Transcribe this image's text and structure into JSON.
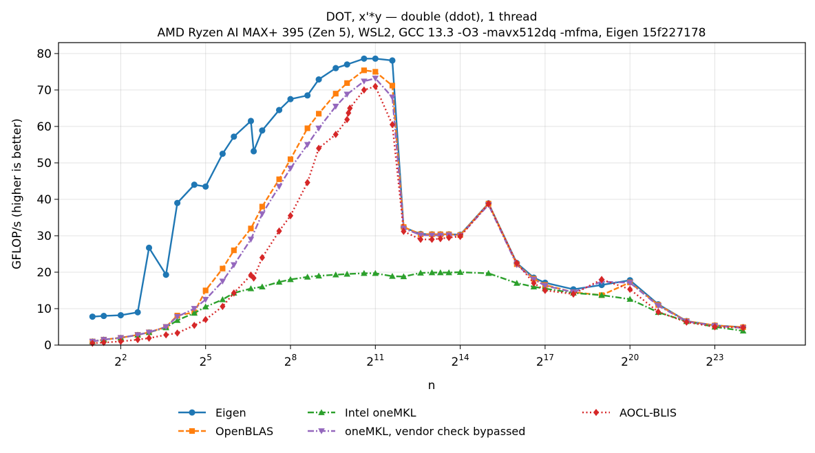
{
  "chart_data": {
    "type": "line",
    "title": "DOT, x'*y — double (ddot), 1 thread",
    "subtitle": "AMD Ryzen AI MAX+ 395 (Zen 5), WSL2, GCC 13.3 -O3 -mavx512dq -mfma, Eigen 15f227178",
    "xlabel": "n",
    "ylabel": "GFLOP/s (higher is better)",
    "x_scale": "log2",
    "x_ticks": [
      {
        "exp": 2,
        "label": "2",
        "sup": "2"
      },
      {
        "exp": 5,
        "label": "2",
        "sup": "5"
      },
      {
        "exp": 8,
        "label": "2",
        "sup": "8"
      },
      {
        "exp": 11,
        "label": "2",
        "sup": "11"
      },
      {
        "exp": 14,
        "label": "2",
        "sup": "14"
      },
      {
        "exp": 17,
        "label": "2",
        "sup": "17"
      },
      {
        "exp": 20,
        "label": "2",
        "sup": "20"
      },
      {
        "exp": 23,
        "label": "2",
        "sup": "23"
      }
    ],
    "xlim_log2": [
      -0.2,
      26.2
    ],
    "ylim": [
      0,
      83
    ],
    "y_ticks": [
      0,
      10,
      20,
      30,
      40,
      50,
      60,
      70,
      80
    ],
    "grid": true,
    "legend_position": "bottom-center",
    "series": [
      {
        "name": "Eigen",
        "color": "#1f77b4",
        "dash": "solid",
        "marker": "circle",
        "points": [
          [
            1.0,
            7.8
          ],
          [
            1.4,
            8.0
          ],
          [
            2.0,
            8.2
          ],
          [
            2.6,
            9.0
          ],
          [
            3.0,
            26.7
          ],
          [
            3.6,
            19.3
          ],
          [
            4.0,
            39.0
          ],
          [
            4.6,
            44.0
          ],
          [
            5.0,
            43.5
          ],
          [
            5.6,
            52.5
          ],
          [
            6.0,
            57.2
          ],
          [
            6.6,
            61.5
          ],
          [
            6.7,
            53.2
          ],
          [
            7.0,
            58.9
          ],
          [
            7.6,
            64.5
          ],
          [
            8.0,
            67.5
          ],
          [
            8.6,
            68.5
          ],
          [
            9.0,
            72.9
          ],
          [
            9.6,
            76.0
          ],
          [
            10.0,
            77.0
          ],
          [
            10.6,
            78.6
          ],
          [
            11.0,
            78.6
          ],
          [
            11.6,
            78.1
          ],
          [
            12.0,
            32.3
          ],
          [
            12.6,
            30.5
          ],
          [
            13.0,
            30.4
          ],
          [
            13.3,
            30.4
          ],
          [
            13.6,
            30.4
          ],
          [
            14.0,
            30.3
          ],
          [
            15.0,
            38.9
          ],
          [
            16.0,
            22.5
          ],
          [
            16.6,
            18.5
          ],
          [
            17.0,
            17.1
          ],
          [
            18.0,
            15.3
          ],
          [
            19.0,
            16.5
          ],
          [
            20.0,
            17.8
          ],
          [
            21.0,
            11.2
          ],
          [
            22.0,
            6.6
          ],
          [
            23.0,
            5.4
          ],
          [
            24.0,
            4.9
          ]
        ]
      },
      {
        "name": "OpenBLAS",
        "color": "#ff7f0e",
        "dash": "dashed",
        "marker": "square",
        "points": [
          [
            1.0,
            1.0
          ],
          [
            1.4,
            1.5
          ],
          [
            2.0,
            2.0
          ],
          [
            2.6,
            2.8
          ],
          [
            3.0,
            3.5
          ],
          [
            3.6,
            5.0
          ],
          [
            4.0,
            8.1
          ],
          [
            4.6,
            9.0
          ],
          [
            5.0,
            15.0
          ],
          [
            5.6,
            21.0
          ],
          [
            6.0,
            26.0
          ],
          [
            6.6,
            32.0
          ],
          [
            7.0,
            38.0
          ],
          [
            7.6,
            45.5
          ],
          [
            8.0,
            51.0
          ],
          [
            8.6,
            59.5
          ],
          [
            9.0,
            63.5
          ],
          [
            9.6,
            69.0
          ],
          [
            10.0,
            71.9
          ],
          [
            10.6,
            75.4
          ],
          [
            11.0,
            75.0
          ],
          [
            11.6,
            71.2
          ],
          [
            12.0,
            32.4
          ],
          [
            12.6,
            30.4
          ],
          [
            13.0,
            30.4
          ],
          [
            13.3,
            30.4
          ],
          [
            13.6,
            30.4
          ],
          [
            14.0,
            30.2
          ],
          [
            15.0,
            38.8
          ],
          [
            16.0,
            22.2
          ],
          [
            16.6,
            18.2
          ],
          [
            17.0,
            16.5
          ],
          [
            18.0,
            14.5
          ],
          [
            19.0,
            13.7
          ],
          [
            20.0,
            17.2
          ],
          [
            21.0,
            11.0
          ],
          [
            22.0,
            6.6
          ],
          [
            23.0,
            5.4
          ],
          [
            24.0,
            4.9
          ]
        ]
      },
      {
        "name": "Intel oneMKL",
        "color": "#2ca02c",
        "dash": "dashdot",
        "marker": "triangle-up",
        "points": [
          [
            1.0,
            1.0
          ],
          [
            1.4,
            1.5
          ],
          [
            2.0,
            2.0
          ],
          [
            2.6,
            2.8
          ],
          [
            3.0,
            3.5
          ],
          [
            3.6,
            4.8
          ],
          [
            4.0,
            6.8
          ],
          [
            4.6,
            8.8
          ],
          [
            5.0,
            10.5
          ],
          [
            5.6,
            12.5
          ],
          [
            6.0,
            14.3
          ],
          [
            6.6,
            15.5
          ],
          [
            7.0,
            16.0
          ],
          [
            7.6,
            17.3
          ],
          [
            8.0,
            18.0
          ],
          [
            8.6,
            18.7
          ],
          [
            9.0,
            19.0
          ],
          [
            9.6,
            19.3
          ],
          [
            10.0,
            19.5
          ],
          [
            10.6,
            19.7
          ],
          [
            11.0,
            19.7
          ],
          [
            11.6,
            18.9
          ],
          [
            12.0,
            18.8
          ],
          [
            12.6,
            19.8
          ],
          [
            13.0,
            19.9
          ],
          [
            13.3,
            19.9
          ],
          [
            13.6,
            19.9
          ],
          [
            14.0,
            20.0
          ],
          [
            15.0,
            19.7
          ],
          [
            16.0,
            17.0
          ],
          [
            16.6,
            16.0
          ],
          [
            17.0,
            15.5
          ],
          [
            18.0,
            14.3
          ],
          [
            19.0,
            13.7
          ],
          [
            20.0,
            12.6
          ],
          [
            21.0,
            9.0
          ],
          [
            22.0,
            6.5
          ],
          [
            23.0,
            5.0
          ],
          [
            24.0,
            3.9
          ]
        ]
      },
      {
        "name": "oneMKL, vendor check bypassed",
        "color": "#9467bd",
        "dash": "dashdot",
        "marker": "triangle-down",
        "points": [
          [
            1.0,
            1.0
          ],
          [
            1.4,
            1.5
          ],
          [
            2.0,
            2.0
          ],
          [
            2.6,
            2.8
          ],
          [
            3.0,
            3.5
          ],
          [
            3.6,
            5.0
          ],
          [
            4.0,
            7.8
          ],
          [
            4.6,
            10.0
          ],
          [
            5.0,
            12.5
          ],
          [
            5.6,
            17.5
          ],
          [
            6.0,
            22.0
          ],
          [
            6.6,
            29.0
          ],
          [
            7.0,
            36.0
          ],
          [
            7.6,
            43.5
          ],
          [
            8.0,
            48.5
          ],
          [
            8.6,
            55.0
          ],
          [
            9.0,
            59.5
          ],
          [
            9.6,
            65.5
          ],
          [
            10.0,
            68.8
          ],
          [
            10.6,
            72.4
          ],
          [
            11.0,
            73.2
          ],
          [
            11.6,
            68.0
          ],
          [
            12.0,
            32.0
          ],
          [
            12.6,
            30.2
          ],
          [
            13.0,
            30.1
          ],
          [
            13.3,
            30.1
          ],
          [
            13.6,
            30.2
          ],
          [
            14.0,
            30.0
          ],
          [
            15.0,
            38.5
          ],
          [
            16.0,
            22.0
          ],
          [
            16.6,
            18.0
          ],
          [
            17.0,
            16.3
          ],
          [
            18.0,
            14.5
          ],
          [
            19.0,
            17.4
          ],
          [
            20.0,
            17.1
          ],
          [
            21.0,
            10.8
          ],
          [
            22.0,
            6.5
          ],
          [
            23.0,
            5.3
          ],
          [
            24.0,
            4.7
          ]
        ]
      },
      {
        "name": "AOCL-BLIS",
        "color": "#d62728",
        "dash": "dotted",
        "marker": "diamond",
        "points": [
          [
            1.0,
            0.5
          ],
          [
            1.4,
            0.7
          ],
          [
            2.0,
            1.0
          ],
          [
            2.6,
            1.5
          ],
          [
            3.0,
            1.9
          ],
          [
            3.6,
            2.8
          ],
          [
            4.0,
            3.3
          ],
          [
            4.6,
            5.4
          ],
          [
            5.0,
            7.0
          ],
          [
            5.6,
            10.6
          ],
          [
            6.0,
            14.3
          ],
          [
            6.6,
            19.2
          ],
          [
            6.7,
            18.4
          ],
          [
            7.0,
            24.0
          ],
          [
            7.6,
            31.3
          ],
          [
            8.0,
            35.5
          ],
          [
            8.6,
            44.6
          ],
          [
            9.0,
            54.0
          ],
          [
            9.6,
            57.8
          ],
          [
            10.0,
            61.9
          ],
          [
            10.05,
            63.7
          ],
          [
            10.1,
            65.0
          ],
          [
            10.6,
            70.0
          ],
          [
            11.0,
            71.0
          ],
          [
            11.6,
            60.5
          ],
          [
            12.0,
            31.2
          ],
          [
            12.6,
            29.0
          ],
          [
            13.0,
            29.0
          ],
          [
            13.3,
            29.2
          ],
          [
            13.6,
            29.5
          ],
          [
            14.0,
            29.8
          ],
          [
            15.0,
            38.8
          ],
          [
            16.0,
            22.5
          ],
          [
            16.6,
            17.0
          ],
          [
            17.0,
            15.0
          ],
          [
            18.0,
            14.0
          ],
          [
            19.0,
            18.0
          ],
          [
            20.0,
            15.3
          ],
          [
            21.0,
            9.1
          ],
          [
            22.0,
            6.3
          ],
          [
            23.0,
            5.0
          ],
          [
            24.0,
            4.8
          ]
        ]
      }
    ]
  }
}
